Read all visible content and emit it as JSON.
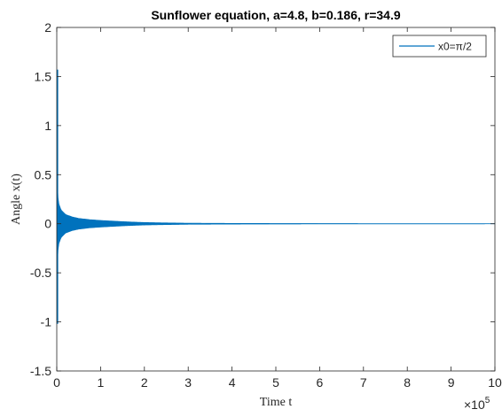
{
  "chart_data": {
    "type": "line",
    "title": "Sunflower equation, a=4.8, b=0.186, r=34.9",
    "xlabel": "Time t",
    "ylabel": "Angle x(t)",
    "x_multiplier_label": "×10",
    "x_multiplier_exponent": "5",
    "xlim": [
      0,
      10
    ],
    "ylim": [
      -1.5,
      2
    ],
    "x_ticks": [
      0,
      1,
      2,
      3,
      4,
      5,
      6,
      7,
      8,
      9,
      10
    ],
    "x_tick_labels": [
      "0",
      "1",
      "2",
      "3",
      "4",
      "5",
      "6",
      "7",
      "8",
      "9",
      "10"
    ],
    "y_ticks": [
      -1.5,
      -1,
      -0.5,
      0,
      0.5,
      1,
      1.5,
      2
    ],
    "y_tick_labels": [
      "-1.5",
      "-1",
      "-0.5",
      "0",
      "0.5",
      "1",
      "1.5",
      "2"
    ],
    "grid": false,
    "legend_position": "top-right",
    "series": [
      {
        "name": "x0=π/2",
        "color": "#0072BD",
        "initial_value": 1.5708,
        "initial_min": -1.02,
        "envelope": [
          [
            0.0,
            1.5708
          ],
          [
            0.01,
            0.45
          ],
          [
            0.02,
            0.3
          ],
          [
            0.05,
            0.2
          ],
          [
            0.1,
            0.14
          ],
          [
            0.2,
            0.095
          ],
          [
            0.35,
            0.07
          ],
          [
            0.5,
            0.055
          ],
          [
            0.75,
            0.042
          ],
          [
            1.0,
            0.034
          ],
          [
            1.25,
            0.028
          ],
          [
            1.5,
            0.022
          ],
          [
            1.75,
            0.017
          ],
          [
            2.0,
            0.013
          ],
          [
            2.5,
            0.009
          ],
          [
            3.0,
            0.006
          ],
          [
            4.0,
            0.004
          ],
          [
            5.0,
            0.003
          ],
          [
            7.0,
            0.002
          ],
          [
            10.0,
            0.0015
          ]
        ]
      }
    ]
  }
}
